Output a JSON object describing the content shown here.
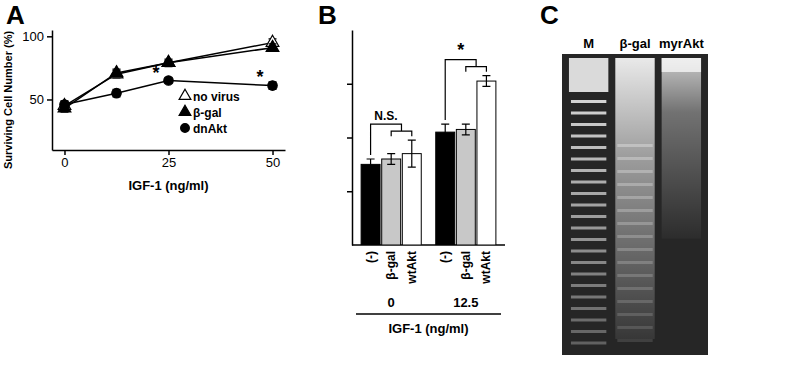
{
  "chart_data": [
    {
      "type": "line",
      "title": "A",
      "x": [
        0,
        12.5,
        25,
        50
      ],
      "xlim": [
        -3,
        53
      ],
      "xticks": [
        0,
        25,
        50
      ],
      "ylim": [
        10,
        105
      ],
      "yticks": [
        50,
        100
      ],
      "x_label": "IGF-1 (ng/ml)",
      "y_label": "Surviving Cell Number (%)",
      "legend": "lower right",
      "series": [
        {
          "name": "no virus",
          "color": "#000000",
          "marker": "triangle-open",
          "values": [
            45,
            70,
            79,
            95
          ],
          "errors": [
            3,
            3,
            2,
            3
          ]
        },
        {
          "name": "β-gal",
          "color": "#000000",
          "marker": "triangle",
          "values": [
            43,
            71,
            79,
            91
          ],
          "errors": [
            3,
            3,
            3,
            3
          ]
        },
        {
          "name": "dnAkt",
          "color": "#000000",
          "marker": "circle",
          "values": [
            46,
            55,
            65,
            61
          ],
          "errors": [
            3,
            3,
            2,
            3
          ]
        }
      ],
      "annotations": [
        {
          "text": "*",
          "x": 22,
          "y": 66
        },
        {
          "text": "*",
          "x": 47,
          "y": 63
        }
      ]
    },
    {
      "type": "bar",
      "title": "B",
      "categories": [
        "0",
        "12.5"
      ],
      "x_label": "IGF-1 (ng/ml)",
      "ylim": [
        20,
        100
      ],
      "yticks": [
        40,
        60,
        80
      ],
      "tick_labels": "x",
      "series": [
        {
          "name": "(-)",
          "color": "#000000",
          "values": [
            50,
            62
          ],
          "errors": [
            2,
            3
          ]
        },
        {
          "name": "β-gal",
          "color": "#c8c8c8",
          "values": [
            52,
            63
          ],
          "errors": [
            2,
            2
          ]
        },
        {
          "name": "wtAkt",
          "color": "#ffffff",
          "values": [
            54,
            81
          ],
          "errors": [
            5,
            2
          ]
        }
      ],
      "annotations": [
        {
          "text": "N.S.",
          "category": "0"
        },
        {
          "text": "*",
          "category": "12.5"
        }
      ]
    },
    {
      "type": "gel",
      "title": "C",
      "categories": [
        "M",
        "β-gal",
        "myrAkt"
      ]
    }
  ]
}
